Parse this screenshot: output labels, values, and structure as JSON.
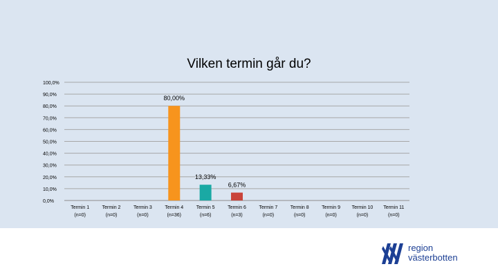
{
  "chart_data": {
    "type": "bar",
    "title": "Vilken termin går du?",
    "categories": [
      {
        "name": "Termin 1",
        "n": "(n=0)"
      },
      {
        "name": "Termin 2",
        "n": "(n=0)"
      },
      {
        "name": "Termin 3",
        "n": "(n=0)"
      },
      {
        "name": "Termin 4",
        "n": "(n=36)"
      },
      {
        "name": "Termin 5",
        "n": "(n=6)"
      },
      {
        "name": "Termin 6",
        "n": "(n=3)"
      },
      {
        "name": "Termin 7",
        "n": "(n=0)"
      },
      {
        "name": "Termin 8",
        "n": "(n=0)"
      },
      {
        "name": "Termin 9",
        "n": "(n=0)"
      },
      {
        "name": "Termin 10",
        "n": "(n=0)"
      },
      {
        "name": "Termin 11",
        "n": "(n=0)"
      }
    ],
    "values": [
      0,
      0,
      0,
      80.0,
      13.33,
      6.67,
      0,
      0,
      0,
      0,
      0
    ],
    "data_labels": [
      "",
      "",
      "",
      "80,00%",
      "13,33%",
      "6,67%",
      "",
      "",
      "",
      "",
      ""
    ],
    "bar_colors": [
      "#f7941d",
      "#f7941d",
      "#f7941d",
      "#f7941d",
      "#1aa9a4",
      "#c9443b",
      "#f7941d",
      "#f7941d",
      "#f7941d",
      "#f7941d",
      "#f7941d"
    ],
    "ylim": [
      0,
      100
    ],
    "yticks": [
      0,
      10,
      20,
      30,
      40,
      50,
      60,
      70,
      80,
      90,
      100
    ],
    "ytick_labels": [
      "0,0%",
      "10,0%",
      "20,0%",
      "30,0%",
      "40,0%",
      "50,0%",
      "60,0%",
      "70,0%",
      "80,0%",
      "90,0%",
      "100,0%"
    ],
    "grid": true
  },
  "logo": {
    "line1": "region",
    "line2": "västerbotten",
    "color": "#1c3f94"
  }
}
